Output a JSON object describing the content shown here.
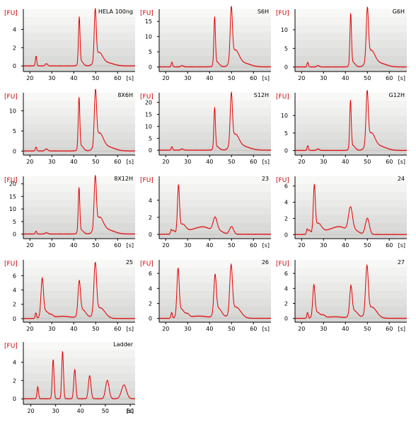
{
  "chart_data": [
    {
      "type": "line",
      "title": "HELA 100ng",
      "ylabel": "[FU]",
      "xlabel": "[s]",
      "xlim": [
        17,
        68
      ],
      "ylim": [
        -0.6,
        6.2
      ],
      "xticks": [
        "20",
        "30",
        "40",
        "50",
        "60"
      ],
      "yticks": [
        "0",
        "2",
        "4"
      ],
      "peaks": [
        [
          22.8,
          1.1,
          0.3
        ],
        [
          27.5,
          0.25,
          0.5
        ],
        [
          42.5,
          5.0,
          0.35
        ],
        [
          43.3,
          0.5,
          1.0
        ],
        [
          49.8,
          5.5,
          0.45
        ],
        [
          51.5,
          1.3,
          1.6
        ],
        [
          55,
          0.35,
          3
        ]
      ],
      "color": "#e00000"
    },
    {
      "type": "line",
      "title": "S6H",
      "ylabel": "[FU]",
      "xlabel": "[s]",
      "xlim": [
        17,
        68
      ],
      "ylim": [
        -1.5,
        19
      ],
      "xticks": [
        "20",
        "30",
        "40",
        "50",
        "60"
      ],
      "yticks": [
        "0",
        "5",
        "10",
        "15"
      ],
      "peaks": [
        [
          22.8,
          1.6,
          0.3
        ],
        [
          27.5,
          0.4,
          0.6
        ],
        [
          42.3,
          15.5,
          0.35
        ],
        [
          43.3,
          1.6,
          1.1
        ],
        [
          49.9,
          17.0,
          0.5
        ],
        [
          51.7,
          5.0,
          1.7
        ],
        [
          55.5,
          1.2,
          3
        ]
      ],
      "color": "#e00000"
    },
    {
      "type": "line",
      "title": "G6H",
      "ylabel": "[FU]",
      "xlabel": "[s]",
      "xlim": [
        17,
        68
      ],
      "ylim": [
        -1.2,
        15.5
      ],
      "xticks": [
        "20",
        "30",
        "40",
        "50",
        "60"
      ],
      "yticks": [
        "0",
        "5",
        "10"
      ],
      "peaks": [
        [
          22.8,
          1.3,
          0.3
        ],
        [
          27.5,
          0.35,
          0.6
        ],
        [
          42.4,
          13.5,
          0.35
        ],
        [
          43.3,
          1.3,
          1.1
        ],
        [
          50.0,
          13.5,
          0.5
        ],
        [
          51.7,
          4.0,
          1.7
        ],
        [
          55.5,
          1.0,
          3
        ]
      ],
      "color": "#e00000"
    },
    {
      "type": "line",
      "title": "8X6H",
      "ylabel": "[FU]",
      "xlabel": "[s]",
      "xlim": [
        17,
        68
      ],
      "ylim": [
        -1.0,
        14.5
      ],
      "xticks": [
        "20",
        "30",
        "40",
        "50",
        "60"
      ],
      "yticks": [
        "0",
        "5",
        "10"
      ],
      "peaks": [
        [
          22.8,
          1.0,
          0.3
        ],
        [
          27.5,
          0.5,
          0.6
        ],
        [
          42.4,
          12.5,
          0.35
        ],
        [
          43.3,
          1.3,
          1.1
        ],
        [
          49.9,
          13.0,
          0.5
        ],
        [
          51.7,
          4.0,
          1.7
        ],
        [
          55.5,
          1.0,
          3
        ]
      ],
      "color": "#e00000"
    },
    {
      "type": "line",
      "title": "S12H",
      "ylabel": "[FU]",
      "xlabel": "[s]",
      "xlim": [
        17,
        68
      ],
      "ylim": [
        -2.0,
        24
      ],
      "xticks": [
        "20",
        "30",
        "40",
        "50",
        "60"
      ],
      "yticks": [
        "0",
        "5",
        "10",
        "15",
        "20"
      ],
      "peaks": [
        [
          22.8,
          1.5,
          0.3
        ],
        [
          27.5,
          0.5,
          0.6
        ],
        [
          42.3,
          17.0,
          0.35
        ],
        [
          43.3,
          1.5,
          1.1
        ],
        [
          49.9,
          20.5,
          0.5
        ],
        [
          51.7,
          6.0,
          1.7
        ],
        [
          55.5,
          1.5,
          3
        ]
      ],
      "color": "#e00000"
    },
    {
      "type": "line",
      "title": "G12H",
      "ylabel": "[FU]",
      "xlabel": "[s]",
      "xlim": [
        17,
        68
      ],
      "ylim": [
        -1.3,
        16.5
      ],
      "xticks": [
        "20",
        "30",
        "40",
        "50",
        "60"
      ],
      "yticks": [
        "0",
        "5",
        "10"
      ],
      "peaks": [
        [
          22.8,
          1.4,
          0.3
        ],
        [
          27.5,
          0.4,
          0.6
        ],
        [
          42.3,
          13.5,
          0.35
        ],
        [
          43.3,
          1.4,
          1.1
        ],
        [
          49.9,
          14.5,
          0.5
        ],
        [
          51.7,
          4.5,
          1.7
        ],
        [
          55.5,
          1.2,
          3
        ]
      ],
      "color": "#e00000"
    },
    {
      "type": "line",
      "title": "8X12H",
      "ylabel": "[FU]",
      "xlabel": "[s]",
      "xlim": [
        17,
        68
      ],
      "ylim": [
        -1.8,
        23
      ],
      "xticks": [
        "20",
        "30",
        "40",
        "50",
        "60"
      ],
      "yticks": [
        "0",
        "5",
        "10",
        "15",
        "20"
      ],
      "peaks": [
        [
          22.8,
          1.2,
          0.3
        ],
        [
          27.5,
          0.5,
          0.6
        ],
        [
          42.4,
          17.5,
          0.35
        ],
        [
          43.3,
          1.6,
          1.1
        ],
        [
          49.8,
          20.0,
          0.5
        ],
        [
          51.7,
          6.0,
          1.7
        ],
        [
          55.5,
          1.6,
          3
        ]
      ],
      "color": "#e00000"
    },
    {
      "type": "line",
      "title": "23",
      "ylabel": "[FU]",
      "xlabel": "[s]",
      "xlim": [
        17,
        68
      ],
      "ylim": [
        -0.5,
        6.8
      ],
      "xticks": [
        "20",
        "30",
        "40",
        "50",
        "60"
      ],
      "yticks": [
        "0",
        "2",
        "4"
      ],
      "peaks": [
        [
          22.5,
          0.5,
          0.3
        ],
        [
          23.5,
          0.4,
          0.5
        ],
        [
          25.8,
          5.2,
          0.45
        ],
        [
          27.5,
          1.0,
          1.5
        ],
        [
          33,
          0.5,
          4
        ],
        [
          38,
          0.6,
          3
        ],
        [
          42.5,
          1.5,
          0.9
        ],
        [
          44,
          0.4,
          2
        ],
        [
          50.0,
          0.9,
          0.9
        ]
      ],
      "color": "#e00000"
    },
    {
      "type": "line",
      "title": "24",
      "ylabel": "[FU]",
      "xlabel": "[s]",
      "xlim": [
        17,
        68
      ],
      "ylim": [
        -0.5,
        7.2
      ],
      "xticks": [
        "20",
        "30",
        "40",
        "50",
        "60"
      ],
      "yticks": [
        "0",
        "2",
        "4",
        "6"
      ],
      "peaks": [
        [
          22.5,
          0.6,
          0.3
        ],
        [
          23.5,
          0.5,
          0.5
        ],
        [
          25.8,
          5.5,
          0.45
        ],
        [
          27.5,
          1.2,
          1.5
        ],
        [
          33,
          0.5,
          4
        ],
        [
          38,
          0.7,
          3
        ],
        [
          42.3,
          2.8,
          0.9
        ],
        [
          44,
          0.5,
          2
        ],
        [
          50.0,
          2.0,
          0.9
        ]
      ],
      "color": "#e00000"
    },
    {
      "type": "line",
      "title": "25",
      "ylabel": "[FU]",
      "xlabel": "[s]",
      "xlim": [
        17,
        68
      ],
      "ylim": [
        -0.5,
        8.2
      ],
      "xticks": [
        "20",
        "30",
        "40",
        "50",
        "60"
      ],
      "yticks": [
        "0",
        "2",
        "4",
        "6"
      ],
      "peaks": [
        [
          22.7,
          0.8,
          0.3
        ],
        [
          25.6,
          5.0,
          0.55
        ],
        [
          27,
          1.0,
          1.5
        ],
        [
          30,
          0.3,
          0.8
        ],
        [
          35,
          0.3,
          4
        ],
        [
          42.5,
          4.5,
          0.55
        ],
        [
          44,
          1.2,
          1.6
        ],
        [
          49.8,
          7.0,
          0.6
        ],
        [
          52,
          1.5,
          2.2
        ]
      ],
      "color": "#e00000"
    },
    {
      "type": "line",
      "title": "26",
      "ylabel": "[FU]",
      "xlabel": "[s]",
      "xlim": [
        17,
        68
      ],
      "ylim": [
        -0.5,
        7.8
      ],
      "xticks": [
        "20",
        "30",
        "40",
        "50",
        "60"
      ],
      "yticks": [
        "0",
        "2",
        "4",
        "6"
      ],
      "peaks": [
        [
          22.7,
          0.8,
          0.3
        ],
        [
          25.6,
          6.0,
          0.5
        ],
        [
          27,
          1.2,
          1.4
        ],
        [
          30,
          0.4,
          0.8
        ],
        [
          35,
          0.3,
          4
        ],
        [
          42.5,
          5.0,
          0.55
        ],
        [
          44,
          1.3,
          1.6
        ],
        [
          49.8,
          6.3,
          0.6
        ],
        [
          52,
          1.5,
          2.2
        ]
      ],
      "color": "#e00000"
    },
    {
      "type": "line",
      "title": "27",
      "ylabel": "[FU]",
      "xlabel": "[s]",
      "xlim": [
        17,
        68
      ],
      "ylim": [
        -0.5,
        7.8
      ],
      "xticks": [
        "20",
        "30",
        "40",
        "50",
        "60"
      ],
      "yticks": [
        "0",
        "2",
        "4",
        "6"
      ],
      "peaks": [
        [
          22.7,
          0.8,
          0.3
        ],
        [
          25.6,
          4.0,
          0.5
        ],
        [
          27,
          0.8,
          1.4
        ],
        [
          30,
          0.3,
          0.8
        ],
        [
          35,
          0.2,
          4
        ],
        [
          42.5,
          3.7,
          0.55
        ],
        [
          44,
          1.0,
          1.6
        ],
        [
          49.8,
          6.2,
          0.6
        ],
        [
          52,
          1.5,
          2.2
        ]
      ],
      "color": "#e00000"
    },
    {
      "type": "line",
      "title": "Ladder",
      "ylabel": "[FU]",
      "xlabel": "[s]",
      "xlim": [
        17,
        62
      ],
      "ylim": [
        -0.6,
        6.2
      ],
      "xticks": [
        "20",
        "30",
        "40",
        "50",
        "60"
      ],
      "yticks": [
        "0",
        "2",
        "4"
      ],
      "peaks": [
        [
          22.8,
          1.3,
          0.3
        ],
        [
          29,
          4.3,
          0.35
        ],
        [
          32.8,
          5.2,
          0.35
        ],
        [
          37.7,
          3.2,
          0.4
        ],
        [
          43.7,
          2.5,
          0.5
        ],
        [
          50.8,
          2.0,
          0.7
        ],
        [
          57.5,
          1.5,
          1.0
        ]
      ],
      "color": "#e00000"
    }
  ]
}
